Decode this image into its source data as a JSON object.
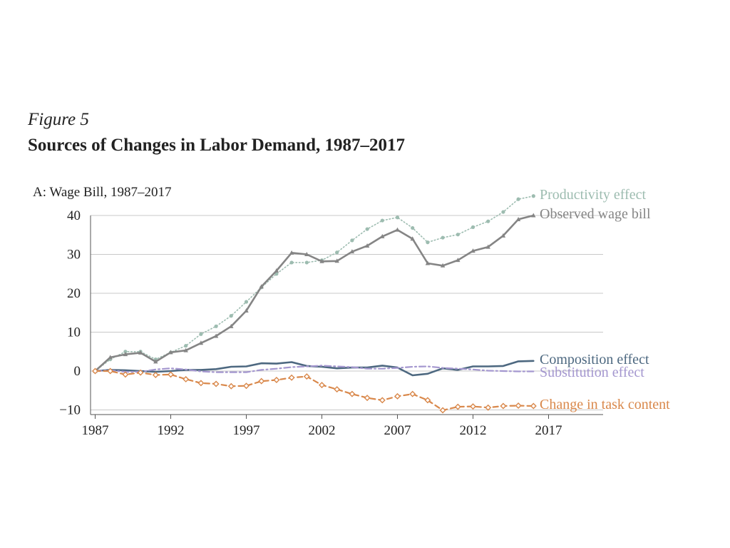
{
  "figure": {
    "label": "Figure 5",
    "title": "Sources of Changes in Labor Demand, 1987–2017",
    "panel_title": "A: Wage Bill, 1987–2017"
  },
  "chart_data": {
    "type": "line",
    "title": "A: Wage Bill, 1987–2017",
    "xlabel": "",
    "ylabel": "",
    "xlim": [
      1987,
      2020
    ],
    "ylim": [
      -11,
      40
    ],
    "x_ticks": [
      "1987",
      "1992",
      "1997",
      "2002",
      "2007",
      "2012",
      "2017"
    ],
    "y_ticks": [
      "40",
      "30",
      "20",
      "10",
      "0",
      "−10"
    ],
    "grid": "horizontal",
    "legend": "direct labels at right end of lines",
    "x": [
      1987,
      1988,
      1989,
      1990,
      1991,
      1992,
      1993,
      1994,
      1995,
      1996,
      1997,
      1998,
      1999,
      2000,
      2001,
      2002,
      2003,
      2004,
      2005,
      2006,
      2007,
      2008,
      2009,
      2010,
      2011,
      2012,
      2013,
      2014,
      2015,
      2016
    ],
    "series": [
      {
        "name": "Productivity effect",
        "color": "#9dbcb0",
        "style": "dotted",
        "marker": "circle",
        "values": [
          0,
          3,
          5,
          5,
          3,
          4.8,
          6.5,
          9.5,
          11.5,
          14.2,
          17.8,
          21.5,
          25,
          27.9,
          27.9,
          28.5,
          30.5,
          33.6,
          36.5,
          38.7,
          39.5,
          36.8,
          33.1,
          34.3,
          35.1,
          37,
          38.5,
          40.9,
          44.2,
          45
        ]
      },
      {
        "name": "Observed wage bill",
        "color": "#858585",
        "style": "solid",
        "marker": "triangle",
        "values": [
          0,
          3.5,
          4.3,
          4.7,
          2.4,
          4.8,
          5.3,
          7.2,
          9,
          11.5,
          15.5,
          21.7,
          25.8,
          30.4,
          30,
          28.2,
          28.3,
          30.7,
          32.2,
          34.6,
          36.3,
          34,
          27.7,
          27.1,
          28.5,
          30.9,
          31.9,
          34.8,
          39,
          40
        ]
      },
      {
        "name": "Composition effect",
        "color": "#4d6880",
        "style": "solid",
        "marker": "none",
        "values": [
          0,
          0.3,
          0.2,
          0,
          -0.2,
          0,
          0.3,
          0.3,
          0.5,
          1.1,
          1.2,
          2,
          1.9,
          2.3,
          1.3,
          1.1,
          0.7,
          0.9,
          0.9,
          1.4,
          0.9,
          -1.1,
          -0.7,
          0.7,
          0.3,
          1.2,
          1.2,
          1.3,
          2.5,
          2.6
        ]
      },
      {
        "name": "Substitution effect",
        "color": "#a497cf",
        "style": "dash-dot",
        "marker": "none",
        "values": [
          0,
          0.2,
          -0.2,
          -0.2,
          0.4,
          0.7,
          0.4,
          -0.1,
          -0.3,
          -0.3,
          -0.3,
          0.3,
          0.6,
          1,
          1.2,
          1.4,
          1.2,
          1,
          0.6,
          0.6,
          0.8,
          1.1,
          1.2,
          0.8,
          0.6,
          0.4,
          0.1,
          0,
          -0.1,
          -0.1
        ]
      },
      {
        "name": "Change in task content",
        "color": "#d9884b",
        "style": "dashed",
        "marker": "open-diamond",
        "values": [
          0,
          0,
          -0.9,
          -0.4,
          -1,
          -0.9,
          -2.1,
          -3.1,
          -3.3,
          -3.9,
          -3.8,
          -2.6,
          -2.3,
          -1.7,
          -1.4,
          -3.6,
          -4.7,
          -5.9,
          -6.9,
          -7.5,
          -6.5,
          -5.9,
          -7.5,
          -10.1,
          -9.2,
          -9.1,
          -9.4,
          -9,
          -8.9,
          -9
        ]
      }
    ]
  }
}
